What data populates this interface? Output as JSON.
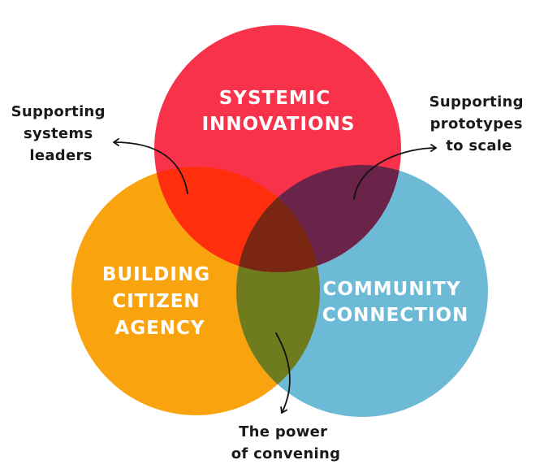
{
  "colors": {
    "systemic": "#F8324A",
    "citizen": "#F9A40E",
    "community": "#6DBAD7",
    "overlap_systemic_citizen": "#FF2E0C",
    "overlap_systemic_community": "#6A2349",
    "overlap_citizen_community": "#6F7C1E",
    "overlap_all": "#7A2612",
    "label_text": "#FFFFFF",
    "annotation_text": "#1A1A1A"
  },
  "circles": {
    "systemic": {
      "lines": [
        "SYSTEMIC",
        "INNOVATIONS"
      ]
    },
    "citizen": {
      "lines": [
        "BUILDING",
        "CITIZEN",
        "AGENCY"
      ]
    },
    "community": {
      "lines": [
        "COMMUNITY",
        "CONNECTION"
      ]
    }
  },
  "annotations": {
    "systems_leaders": {
      "lines": [
        "Supporting",
        "systems",
        "leaders"
      ]
    },
    "prototypes": {
      "lines": [
        "Supporting",
        "prototypes",
        "to scale"
      ]
    },
    "convening": {
      "lines": [
        "The power",
        "of convening"
      ]
    }
  }
}
